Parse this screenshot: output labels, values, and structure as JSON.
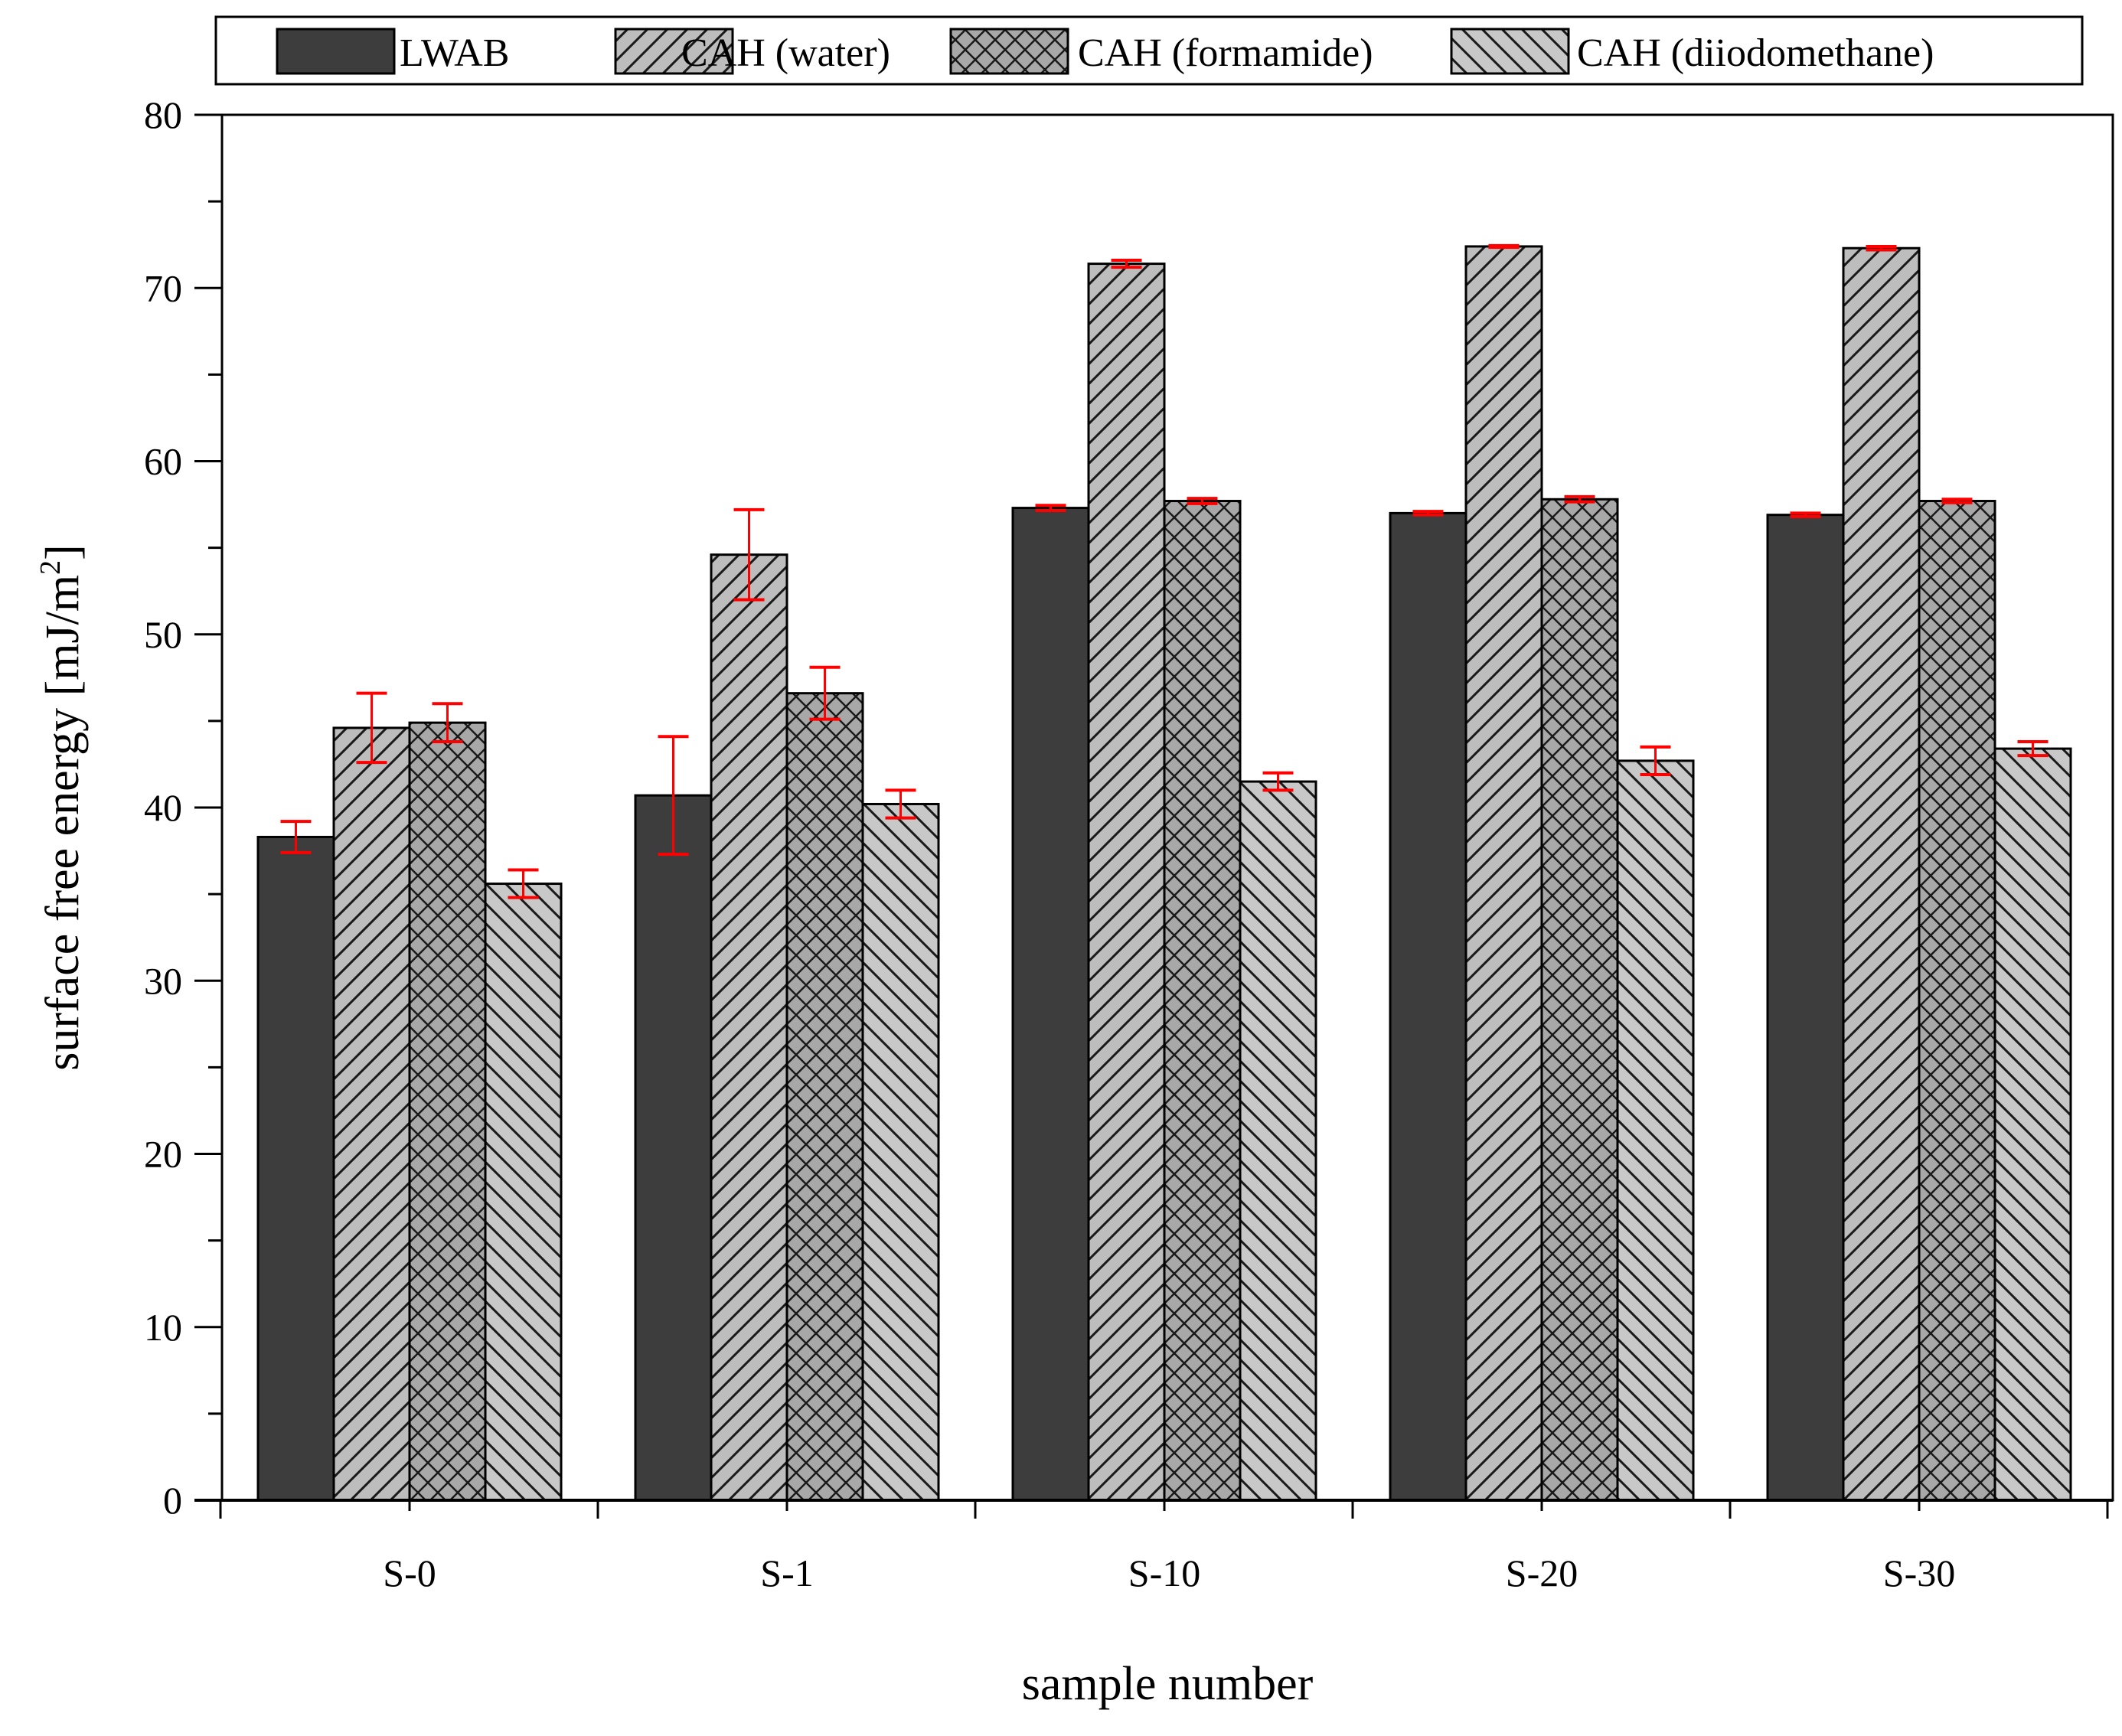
{
  "chart_data": {
    "type": "bar",
    "categories": [
      "S-0",
      "S-1",
      "S-10",
      "S-20",
      "S-30"
    ],
    "series": [
      {
        "name": "LWAB",
        "values": [
          38.3,
          40.7,
          57.3,
          57.0,
          56.9
        ],
        "errors": [
          0.9,
          3.4,
          0.15,
          0.1,
          0.1
        ],
        "fill": "#3d3d3d",
        "pattern": "solid"
      },
      {
        "name": "CAH (water)",
        "values": [
          44.6,
          54.6,
          71.4,
          72.4,
          72.3
        ],
        "errors": [
          2.0,
          2.6,
          0.2,
          0.05,
          0.1
        ],
        "fill": "#bdbdbd",
        "pattern": "diag-forward"
      },
      {
        "name": "CAH (formamide)",
        "values": [
          44.9,
          46.6,
          57.7,
          57.8,
          57.7
        ],
        "errors": [
          1.1,
          1.5,
          0.15,
          0.15,
          0.1
        ],
        "fill": "#a8a8a8",
        "pattern": "crosshatch"
      },
      {
        "name": "CAH (diiodomethane)",
        "values": [
          35.6,
          40.2,
          41.5,
          42.7,
          43.4
        ],
        "errors": [
          0.8,
          0.8,
          0.5,
          0.8,
          0.4
        ],
        "fill": "#c8c8c8",
        "pattern": "diag-back"
      }
    ],
    "xlabel": "sample number",
    "ylabel": "surface free energy [mJ/m",
    "ylabel_superscript": "2",
    "ylabel_suffix": "]",
    "ylim": [
      0,
      80
    ],
    "yticks": [
      0,
      10,
      20,
      30,
      40,
      50,
      60,
      70,
      80
    ],
    "error_bar_color": "#ff0000",
    "grid": false,
    "legend_position": "top"
  }
}
